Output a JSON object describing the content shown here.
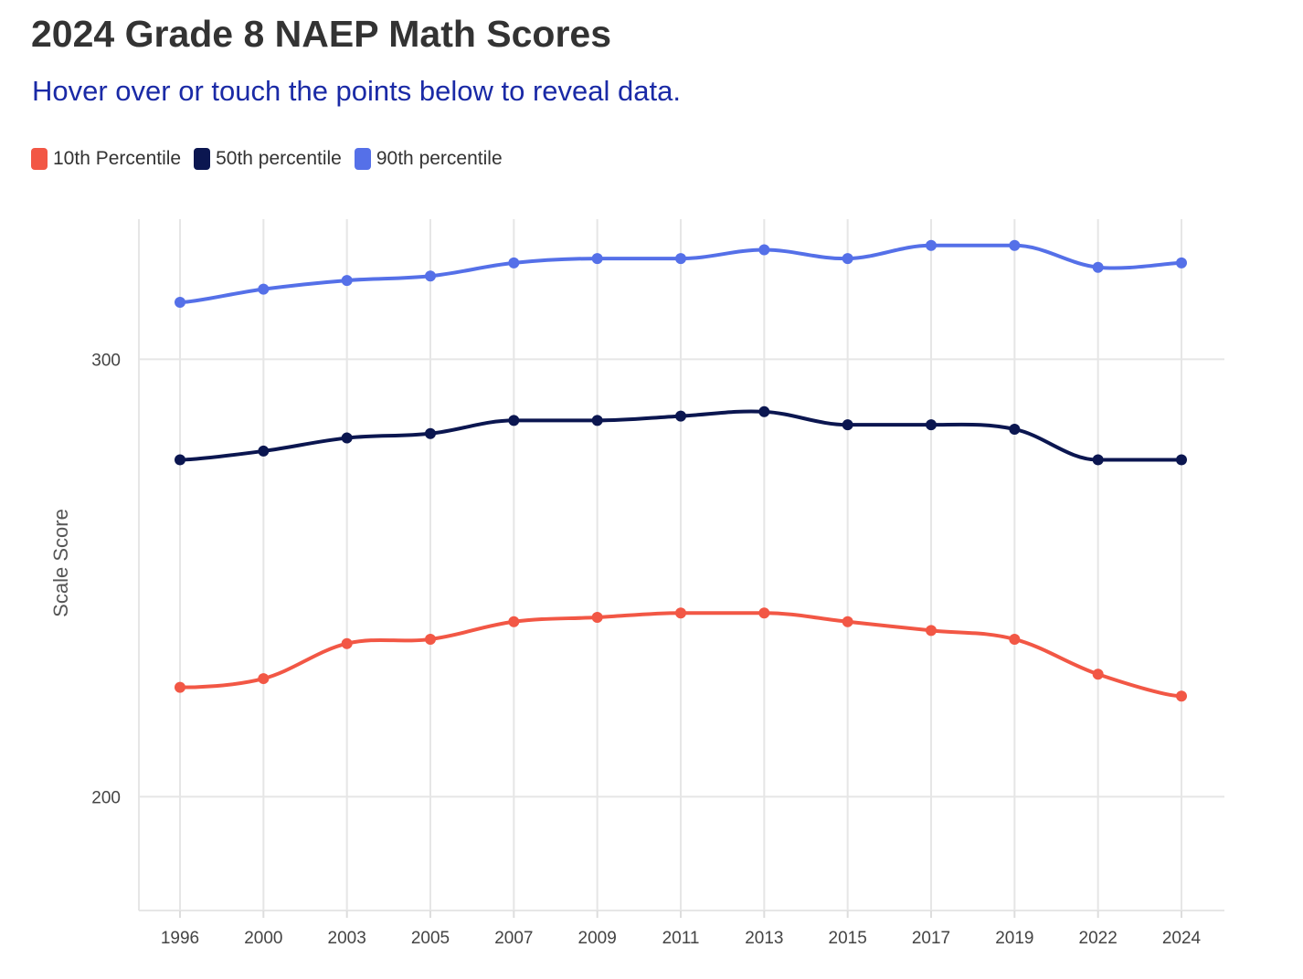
{
  "header": {
    "title": "2024 Grade 8 NAEP Math Scores",
    "subtitle": "Hover over or touch the points below to reveal data."
  },
  "legend": {
    "items": [
      {
        "label": "10th Percentile",
        "color": "#f25745"
      },
      {
        "label": "50th percentile",
        "color": "#0b1650"
      },
      {
        "label": "90th percentile",
        "color": "#5570e8"
      }
    ]
  },
  "chart_data": {
    "type": "line",
    "title": "2024 Grade 8 NAEP Math Scores",
    "xlabel": "",
    "ylabel": "Scale Score",
    "categories": [
      "1996",
      "2000",
      "2003",
      "2005",
      "2007",
      "2009",
      "2011",
      "2013",
      "2015",
      "2017",
      "2019",
      "2022",
      "2024"
    ],
    "ylim": [
      174,
      332
    ],
    "yticks": [
      200,
      300
    ],
    "grid": true,
    "legend_position": "top-left",
    "series": [
      {
        "name": "10th Percentile",
        "color": "#f25745",
        "values": [
          225,
          227,
          235,
          236,
          240,
          241,
          242,
          242,
          240,
          238,
          236,
          228,
          223
        ]
      },
      {
        "name": "50th percentile",
        "color": "#0b1650",
        "values": [
          277,
          279,
          282,
          283,
          286,
          286,
          287,
          288,
          285,
          285,
          284,
          277,
          277
        ]
      },
      {
        "name": "90th percentile",
        "color": "#5570e8",
        "values": [
          313,
          316,
          318,
          319,
          322,
          323,
          323,
          325,
          323,
          326,
          326,
          321,
          322
        ]
      }
    ]
  }
}
